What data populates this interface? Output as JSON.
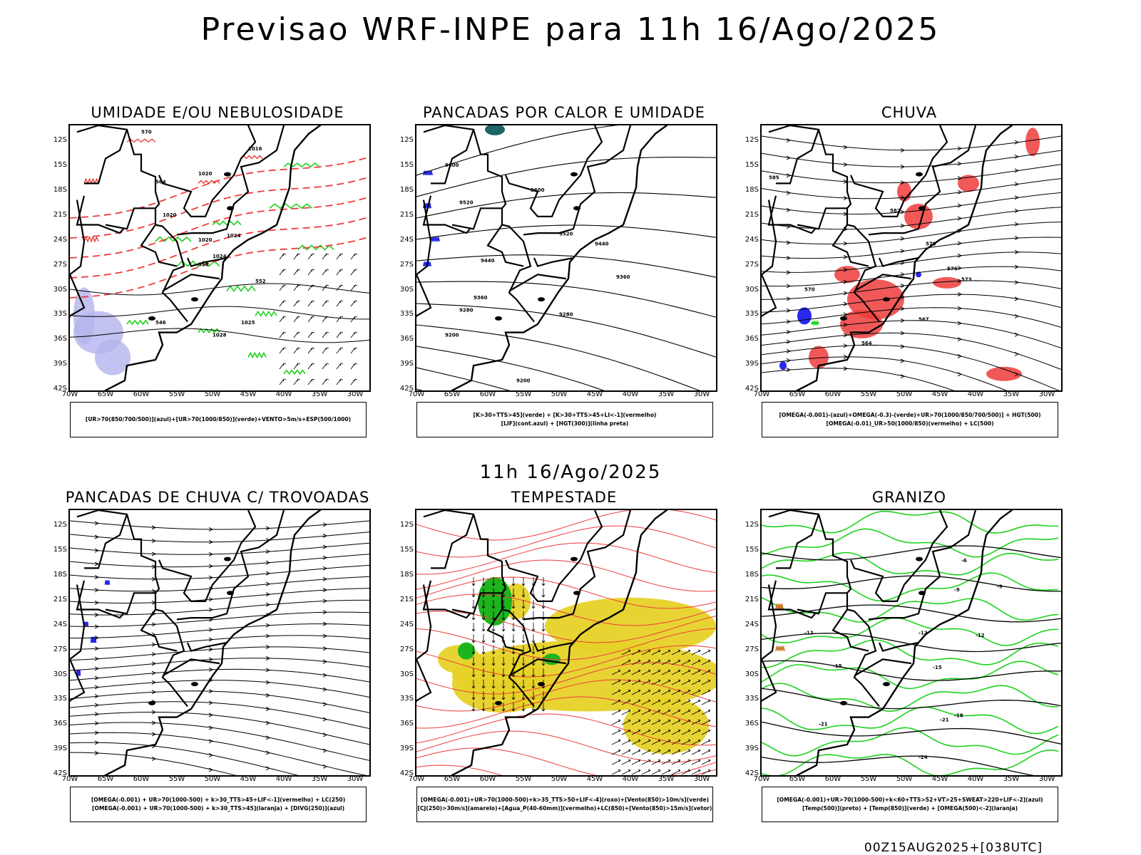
{
  "title": "Previsao WRF-INPE  para 11h 16/Ago/2025",
  "mid_date": "11h 16/Ago/2025",
  "footer": "00Z15AUG2025+[038UTC]",
  "axes": {
    "lat_labels": [
      "12S",
      "15S",
      "18S",
      "21S",
      "24S",
      "27S",
      "30S",
      "33S",
      "36S",
      "39S",
      "42S"
    ],
    "lon_labels": [
      "70W",
      "65W",
      "60W",
      "55W",
      "50W",
      "45W",
      "40W",
      "35W",
      "30W"
    ]
  },
  "panels": [
    {
      "id": "umidade",
      "title": "UMIDADE E/OU NEBULOSIDADE",
      "legend": [
        "[UR>70(850/700/500)](azul)+[UR>70(1000/850)](verde)+VENTO>5m/s+ESP(500/1000)"
      ],
      "contour_labels": [
        "1016",
        "1020",
        "1020",
        "1024",
        "1020",
        "1024",
        "1028",
        "1025",
        "570",
        "564",
        "558",
        "552",
        "546"
      ],
      "colors": {
        "blue": "#b4b4ee",
        "green": "#1ed21e",
        "red": "#ee3c3c"
      }
    },
    {
      "id": "pancadas-calor",
      "title": "PANCADAS POR CALOR E UMIDADE",
      "legend": [
        "[K>30+TTS>45](verde) + [K>30+TTS>45+LI<-1](vermelho)",
        "[LIF](cont.azul) + [HGT(300)](linha preta)"
      ],
      "contour_labels": [
        "9600",
        "9600",
        "9520",
        "9520",
        "9440",
        "9440",
        "9360",
        "9360",
        "9280",
        "9280",
        "9200",
        "9200"
      ],
      "colors": {
        "blue": "#2828ee",
        "teal": "#1e6464"
      }
    },
    {
      "id": "chuva",
      "title": "CHUVA",
      "legend": [
        "[OMEGA(-0.001)-(azul)+OMEGA(-0.3)-(verde)+UR>70(1000/850/700/500)] + HGT(500)",
        "[OMEGA(-0.01)_UR>50(1000/850)(vermelho) + LC(500)"
      ],
      "contour_labels": [
        "585",
        "582",
        "579",
        "576",
        "573",
        "570",
        "567",
        "564"
      ],
      "colors": {
        "red": "#ee3c3c",
        "blue": "#2828ee",
        "green": "#1ed21e"
      }
    },
    {
      "id": "trovoadas",
      "title": "PANCADAS DE CHUVA C/ TROVOADAS",
      "legend": [
        "[OMEGA(-0.001) + UR>70(1000-500) + k>30_TTS>45+LIF<-1](vermelho) + LC(250)",
        "[OMEGA(-0.001) + UR>70(1000-500) + k>30_TTS>45](laranja) + [DIVG(250)](azul)"
      ],
      "contour_labels": [],
      "colors": {
        "blue": "#2828ee"
      }
    },
    {
      "id": "tempestade",
      "title": "TEMPESTADE",
      "legend": [
        "[OMEGA(-0.001)+UR>70(1000-500)+k>35_TTS>50+LIF<-4](roxo)+[Vento(850)>10m/s](verde)",
        "[CJ(250)>30m/s](amarelo)+[Agua_P(40-60mm)](vermelho)+LC(850)+[Vento(850)>15m/s](vetor)"
      ],
      "contour_labels": [],
      "colors": {
        "yellow": "#e6d228",
        "green": "#1eb41e",
        "red": "#ee3c3c"
      }
    },
    {
      "id": "granizo",
      "title": "GRANIZO",
      "legend": [
        "[OMEGA(-0.001)+UR>70(1000-500)+k<60+TTS>52+VT>25+SWEAT>220+LIF<-2](azul)",
        "[Temp(500)](preto) + [Temp(850)](verde) + [OMEGA(500)<-2](laranja)"
      ],
      "contour_labels": [
        "-6",
        "-9",
        "-9",
        "-12",
        "-12",
        "-12",
        "-15",
        "-15",
        "-18",
        "-21",
        "-21",
        "-24"
      ],
      "colors": {
        "green": "#1ed21e",
        "orange": "#c87828"
      }
    }
  ]
}
